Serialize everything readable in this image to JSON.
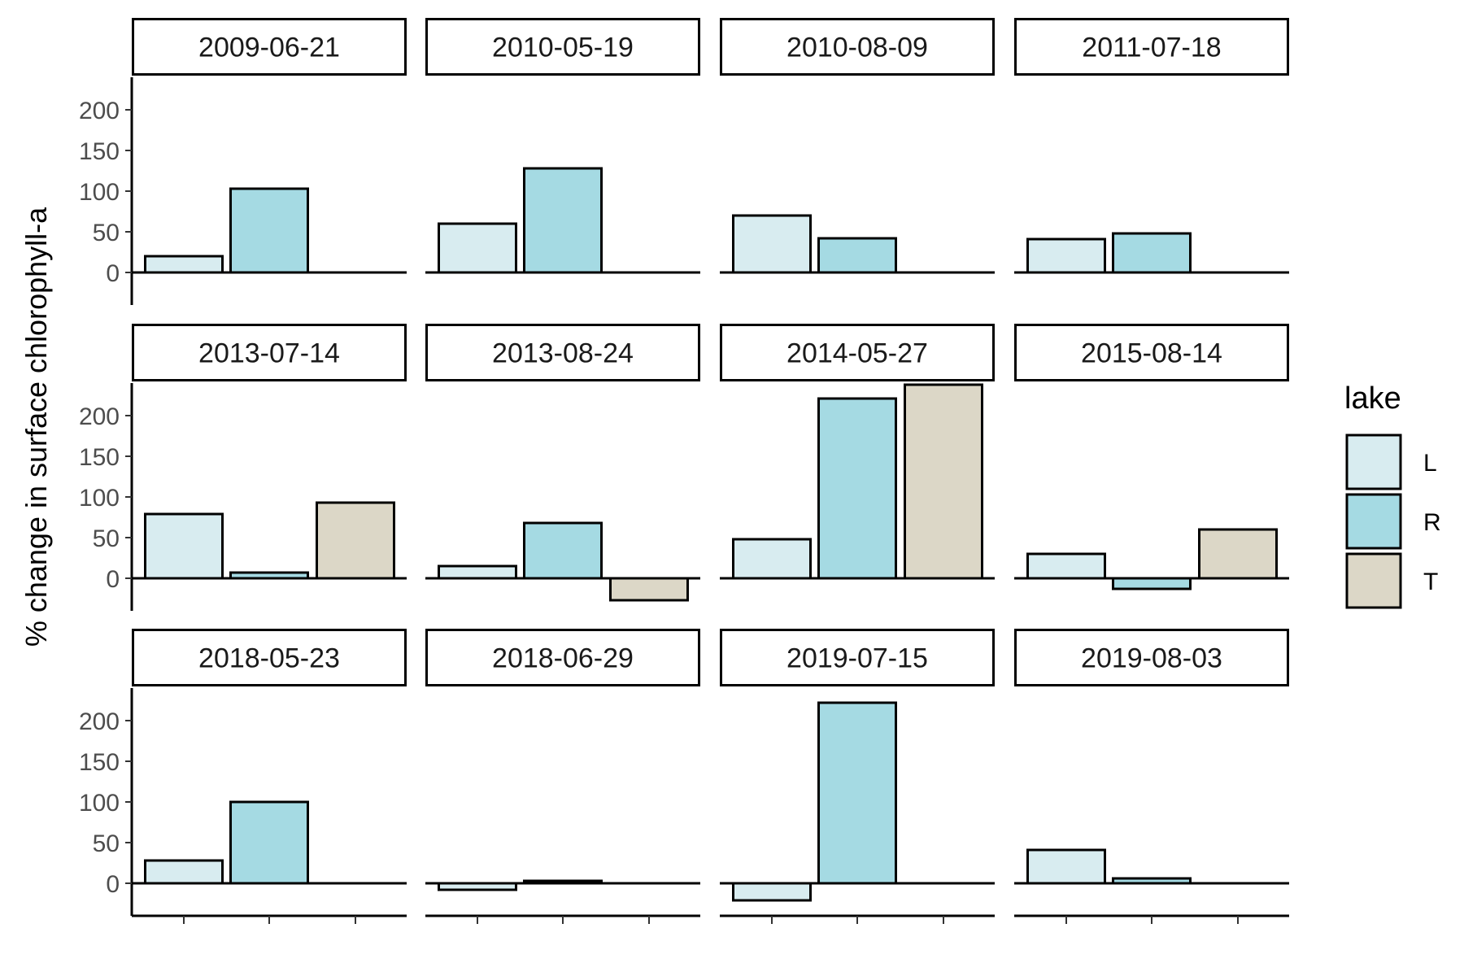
{
  "chart_data": {
    "type": "bar",
    "ylabel": "% change in surface chlorophyll-a",
    "ylim": [
      -40,
      240
    ],
    "y_ticks": [
      0,
      50,
      100,
      150,
      200
    ],
    "categories": [
      "L",
      "R",
      "T"
    ],
    "legend": {
      "title": "lake",
      "placement": "right",
      "entries": [
        {
          "label": "L",
          "color": "#d8ecf0"
        },
        {
          "label": "R",
          "color": "#a5dae3"
        },
        {
          "label": "T",
          "color": "#dcd7c7"
        }
      ]
    },
    "colors": {
      "L": "#d8ecf0",
      "R": "#a5dae3",
      "T": "#dcd7c7"
    },
    "facets": [
      {
        "label": "2009-06-21",
        "values": {
          "L": 20,
          "R": 103
        }
      },
      {
        "label": "2010-05-19",
        "values": {
          "L": 60,
          "R": 128
        }
      },
      {
        "label": "2010-08-09",
        "values": {
          "L": 70,
          "R": 42
        }
      },
      {
        "label": "2011-07-18",
        "values": {
          "L": 41,
          "R": 48
        }
      },
      {
        "label": "2013-07-14",
        "values": {
          "L": 79,
          "R": 7,
          "T": 93
        }
      },
      {
        "label": "2013-08-24",
        "values": {
          "L": 15,
          "R": 68,
          "T": -27
        }
      },
      {
        "label": "2014-05-27",
        "values": {
          "L": 48,
          "R": 221,
          "T": 238
        }
      },
      {
        "label": "2015-08-14",
        "values": {
          "L": 30,
          "R": -13,
          "T": 60
        }
      },
      {
        "label": "2018-05-23",
        "values": {
          "L": 28,
          "R": 100
        }
      },
      {
        "label": "2018-06-29",
        "values": {
          "L": -8,
          "R": 3
        }
      },
      {
        "label": "2019-07-15",
        "values": {
          "L": -21,
          "R": 222
        }
      },
      {
        "label": "2019-08-03",
        "values": {
          "L": 41,
          "R": 6
        }
      }
    ]
  }
}
